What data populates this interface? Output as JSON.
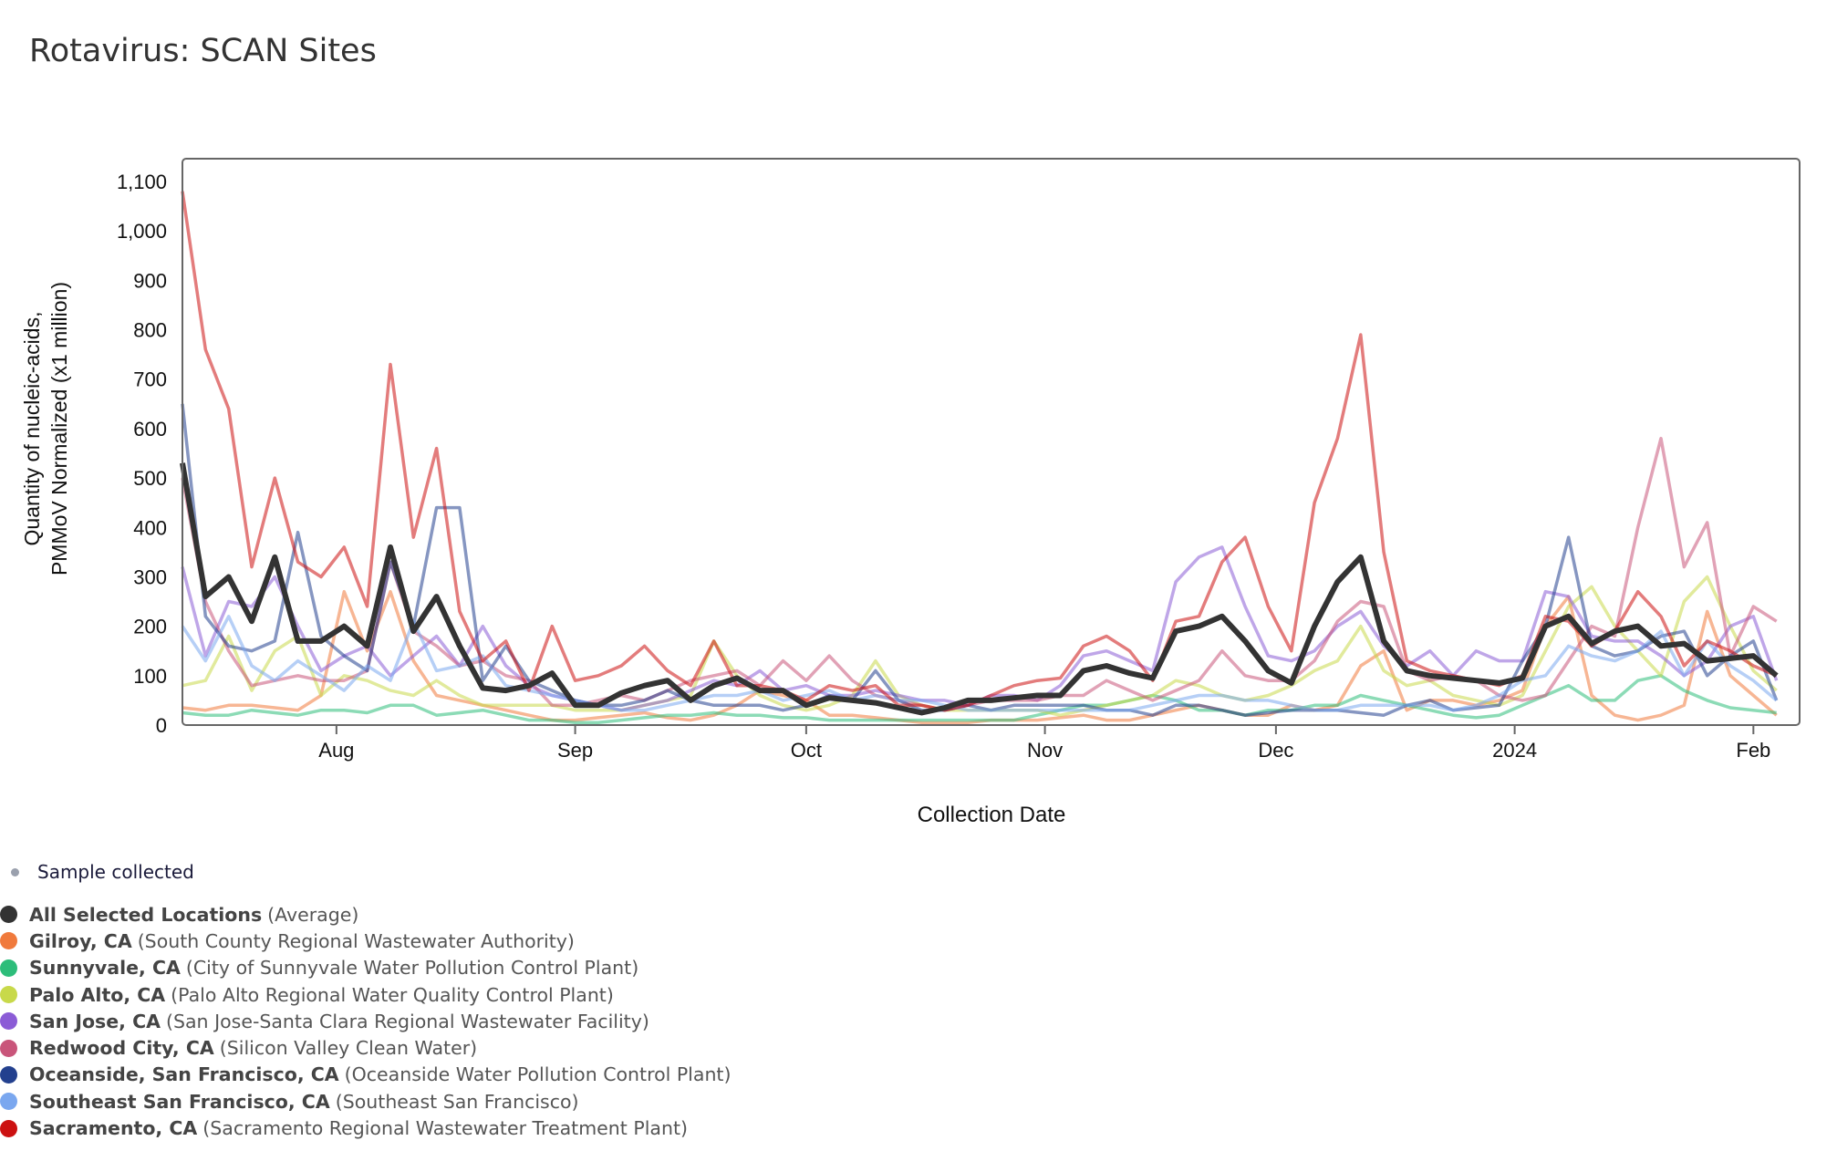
{
  "title": "Rotavirus: SCAN Sites",
  "sample_label": "Sample collected",
  "colors": {
    "sample": "#9aa0ad"
  },
  "chart_data": {
    "type": "line",
    "title": "Rotavirus: SCAN Sites",
    "xlabel": "Collection Date",
    "ylabel_lines": [
      "Quantity of nucleic-acids,",
      "PMMoV Normalized (x1 million)"
    ],
    "ylim": [
      0,
      1100
    ],
    "xlim": [
      "2023-07-12",
      "2024-02-07"
    ],
    "yticks": [
      0,
      100,
      200,
      300,
      400,
      500,
      600,
      700,
      800,
      900,
      1000,
      1100
    ],
    "ytick_labels": [
      "0",
      "100",
      "200",
      "300",
      "400",
      "500",
      "600",
      "700",
      "800",
      "900",
      "1,000",
      "1,100"
    ],
    "xticks": [
      {
        "date": "2023-08-01",
        "label": "Aug"
      },
      {
        "date": "2023-09-01",
        "label": "Sep"
      },
      {
        "date": "2023-10-01",
        "label": "Oct"
      },
      {
        "date": "2023-11-01",
        "label": "Nov"
      },
      {
        "date": "2023-12-01",
        "label": "Dec"
      },
      {
        "date": "2024-01-01",
        "label": "2024"
      },
      {
        "date": "2024-02-01",
        "label": "Feb"
      }
    ],
    "x_start": "2023-07-12",
    "x_step_days": 3,
    "series": [
      {
        "name": "Gilroy, CA",
        "site": "(South County Regional Wastewater Authority)",
        "color": "#f07a3c",
        "values": [
          35,
          30,
          40,
          40,
          35,
          30,
          60,
          270,
          150,
          270,
          130,
          60,
          50,
          40,
          30,
          20,
          10,
          10,
          15,
          20,
          25,
          15,
          10,
          20,
          40,
          70,
          60,
          50,
          20,
          20,
          15,
          10,
          5,
          5,
          5,
          10,
          10,
          10,
          15,
          20,
          10,
          10,
          20,
          30,
          40,
          30,
          20,
          20,
          40,
          30,
          40,
          120,
          150,
          30,
          50,
          50,
          40,
          50,
          70,
          200,
          260,
          60,
          20,
          10,
          20,
          40,
          230,
          100,
          60,
          20
        ]
      },
      {
        "name": "Sunnyvale, CA",
        "site": "(City of Sunnyvale Water Pollution Control Plant)",
        "color": "#2dbd7a",
        "values": [
          25,
          20,
          20,
          30,
          25,
          20,
          30,
          30,
          25,
          40,
          40,
          20,
          25,
          30,
          20,
          10,
          10,
          5,
          5,
          10,
          15,
          20,
          20,
          25,
          20,
          20,
          15,
          15,
          10,
          10,
          10,
          10,
          10,
          10,
          10,
          10,
          10,
          20,
          30,
          40,
          40,
          50,
          60,
          50,
          30,
          30,
          20,
          30,
          30,
          40,
          40,
          60,
          50,
          40,
          30,
          20,
          15,
          20,
          40,
          60,
          80,
          50,
          50,
          90,
          100,
          70,
          50,
          35,
          30,
          25
        ]
      },
      {
        "name": "Palo Alto, CA",
        "site": "(Palo Alto Regional Water Quality Control Plant)",
        "color": "#c8d94a",
        "values": [
          80,
          90,
          180,
          70,
          150,
          180,
          60,
          100,
          90,
          70,
          60,
          90,
          60,
          40,
          40,
          40,
          40,
          30,
          30,
          30,
          40,
          50,
          60,
          170,
          100,
          60,
          40,
          30,
          40,
          60,
          130,
          60,
          40,
          30,
          30,
          30,
          30,
          30,
          20,
          30,
          40,
          50,
          60,
          90,
          80,
          60,
          50,
          60,
          80,
          110,
          130,
          200,
          110,
          80,
          90,
          60,
          50,
          40,
          60,
          150,
          240,
          280,
          200,
          150,
          100,
          250,
          300,
          200,
          110,
          70
        ]
      },
      {
        "name": "San Jose, CA",
        "site": "(San Jose-Santa Clara Regional Wastewater Facility)",
        "color": "#8b5cd6",
        "values": [
          320,
          140,
          250,
          240,
          300,
          200,
          110,
          140,
          160,
          100,
          140,
          180,
          120,
          200,
          120,
          80,
          60,
          50,
          40,
          30,
          40,
          50,
          70,
          90,
          80,
          110,
          70,
          80,
          60,
          60,
          70,
          60,
          50,
          50,
          40,
          60,
          60,
          50,
          80,
          140,
          150,
          130,
          110,
          290,
          340,
          360,
          240,
          140,
          130,
          150,
          200,
          230,
          160,
          120,
          150,
          100,
          150,
          130,
          130,
          270,
          260,
          180,
          170,
          170,
          140,
          100,
          130,
          200,
          220,
          90
        ]
      },
      {
        "name": "Redwood City, CA",
        "site": "(Silicon Valley Clean Water)",
        "color": "#c9557a",
        "values": [
          500,
          250,
          150,
          80,
          90,
          100,
          90,
          90,
          110,
          330,
          190,
          160,
          120,
          130,
          100,
          90,
          40,
          40,
          50,
          60,
          50,
          70,
          90,
          100,
          110,
          80,
          130,
          90,
          140,
          90,
          60,
          50,
          40,
          30,
          40,
          50,
          50,
          50,
          60,
          60,
          90,
          70,
          50,
          70,
          90,
          150,
          100,
          90,
          90,
          130,
          210,
          250,
          240,
          110,
          90,
          100,
          90,
          60,
          50,
          60,
          130,
          200,
          180,
          400,
          580,
          320,
          410,
          140,
          240,
          210
        ]
      },
      {
        "name": "Oceanside, San Francisco, CA",
        "site": "(Oceanside Water Pollution Control Plant)",
        "color": "#23408e",
        "values": [
          650,
          220,
          160,
          150,
          170,
          390,
          180,
          140,
          110,
          330,
          200,
          440,
          440,
          90,
          160,
          90,
          70,
          50,
          40,
          40,
          50,
          70,
          50,
          40,
          40,
          40,
          30,
          40,
          60,
          50,
          110,
          50,
          30,
          30,
          40,
          30,
          40,
          40,
          40,
          40,
          30,
          30,
          20,
          40,
          40,
          30,
          20,
          25,
          30,
          30,
          30,
          25,
          20,
          40,
          50,
          30,
          35,
          40,
          130,
          200,
          380,
          160,
          140,
          150,
          180,
          190,
          100,
          140,
          170,
          50
        ]
      },
      {
        "name": "Southeast San Francisco, CA",
        "site": "(Southeast San Francisco)",
        "color": "#7aa7ef",
        "values": [
          200,
          130,
          220,
          120,
          90,
          130,
          100,
          70,
          120,
          90,
          210,
          110,
          120,
          140,
          80,
          70,
          60,
          50,
          40,
          30,
          30,
          40,
          50,
          60,
          60,
          70,
          50,
          60,
          70,
          50,
          60,
          50,
          50,
          40,
          30,
          30,
          30,
          30,
          30,
          30,
          30,
          30,
          40,
          50,
          60,
          60,
          50,
          50,
          40,
          30,
          30,
          40,
          40,
          40,
          40,
          30,
          40,
          60,
          90,
          100,
          160,
          140,
          130,
          150,
          190,
          100,
          170,
          120,
          90,
          50
        ]
      },
      {
        "name": "Sacramento, CA",
        "site": "(Sacramento Regional Wastewater Treatment Plant)",
        "color": "#cc1111",
        "values": [
          1080,
          760,
          640,
          320,
          500,
          330,
          300,
          360,
          240,
          730,
          380,
          560,
          230,
          130,
          170,
          70,
          200,
          90,
          100,
          120,
          160,
          110,
          80,
          170,
          80,
          80,
          70,
          50,
          80,
          70,
          80,
          40,
          40,
          30,
          40,
          60,
          80,
          90,
          95,
          160,
          180,
          150,
          90,
          210,
          220,
          330,
          380,
          240,
          150,
          450,
          580,
          790,
          350,
          130,
          110,
          100,
          90,
          80,
          100,
          220,
          210,
          160,
          190,
          270,
          220,
          120,
          170,
          150,
          120,
          100
        ]
      },
      {
        "name": "All Selected Locations",
        "site": "(Average)",
        "color": "#333333",
        "average": true,
        "values": [
          530,
          260,
          300,
          210,
          340,
          170,
          170,
          200,
          160,
          360,
          190,
          260,
          160,
          75,
          70,
          80,
          105,
          40,
          40,
          65,
          80,
          90,
          50,
          80,
          95,
          70,
          70,
          40,
          55,
          50,
          45,
          35,
          25,
          35,
          50,
          50,
          55,
          60,
          60,
          110,
          120,
          105,
          95,
          190,
          200,
          220,
          170,
          110,
          85,
          200,
          290,
          340,
          170,
          110,
          100,
          95,
          90,
          85,
          95,
          200,
          220,
          165,
          190,
          200,
          160,
          165,
          130,
          135,
          140,
          100
        ]
      }
    ]
  }
}
